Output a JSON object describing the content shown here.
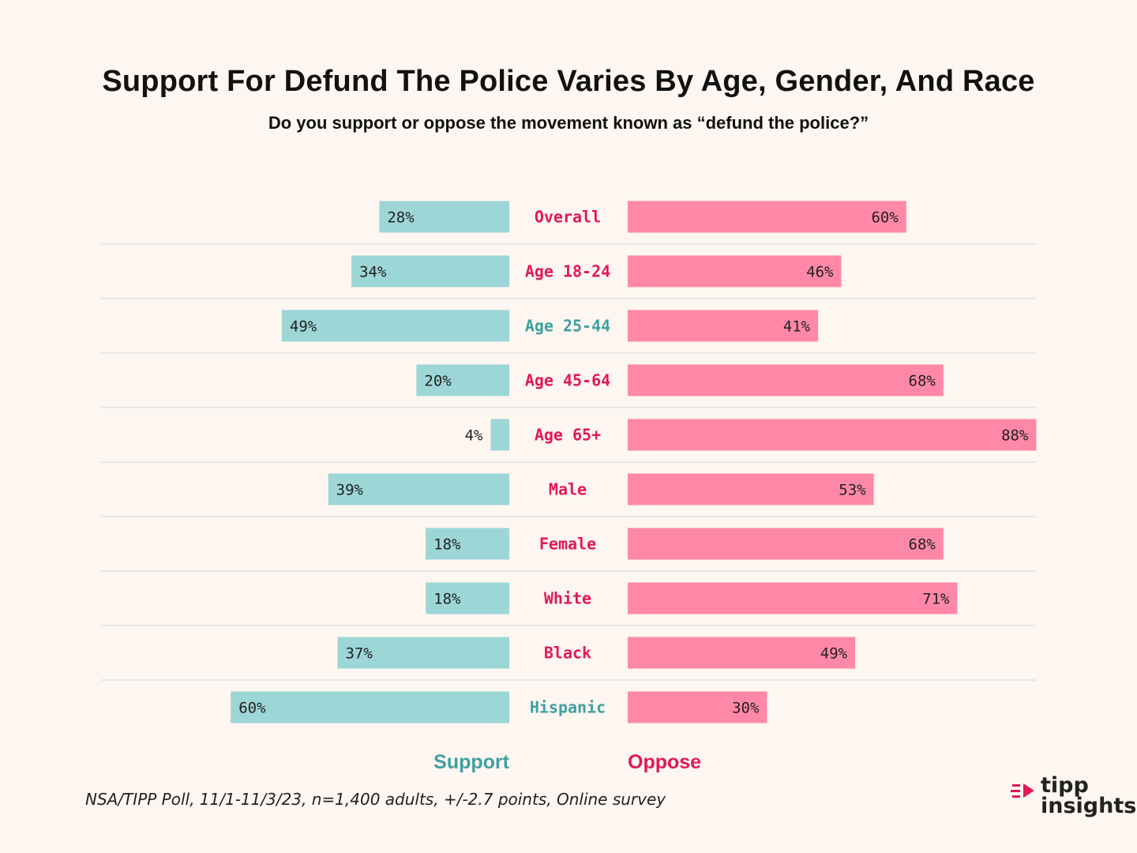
{
  "title": "Support For Defund The Police Varies By Age, Gender, And Race",
  "subtitle": "Do you support or oppose the movement known as “defund the police?”",
  "source": "NSA/TIPP Poll, 11/1-11/3/23, n=1,400 adults, +/-2.7 points, Online survey",
  "logo": {
    "line1": "tipp",
    "line2": "insights"
  },
  "colors": {
    "support": "#9dd6d6",
    "oppose": "#ff88a8",
    "support_text": "#3fa0a0",
    "oppose_text": "#e0185a",
    "gridline": "#d6d6d6"
  },
  "chart_data": {
    "type": "bar",
    "orientation": "horizontal-diverging",
    "categories": [
      "Overall",
      "Age 18-24",
      "Age 25-44",
      "Age 45-64",
      "Age 65+",
      "Male",
      "Female",
      "White",
      "Black",
      "Hispanic"
    ],
    "category_label_color": [
      "oppose",
      "oppose",
      "support",
      "oppose",
      "oppose",
      "oppose",
      "oppose",
      "oppose",
      "oppose",
      "support"
    ],
    "series": [
      {
        "name": "Support",
        "values": [
          28,
          34,
          49,
          20,
          4,
          39,
          18,
          18,
          37,
          60
        ],
        "labels": [
          "28%",
          "34%",
          "49%",
          "20%",
          "4%",
          "39%",
          "18%",
          "18%",
          "37%",
          "60%"
        ]
      },
      {
        "name": "Oppose",
        "values": [
          60,
          46,
          41,
          68,
          88,
          53,
          68,
          71,
          49,
          30
        ],
        "labels": [
          "60%",
          "46%",
          "41%",
          "68%",
          "88%",
          "53%",
          "68%",
          "71%",
          "49%",
          "30%"
        ]
      }
    ],
    "legend": [
      "Support",
      "Oppose"
    ],
    "unit": "%"
  }
}
